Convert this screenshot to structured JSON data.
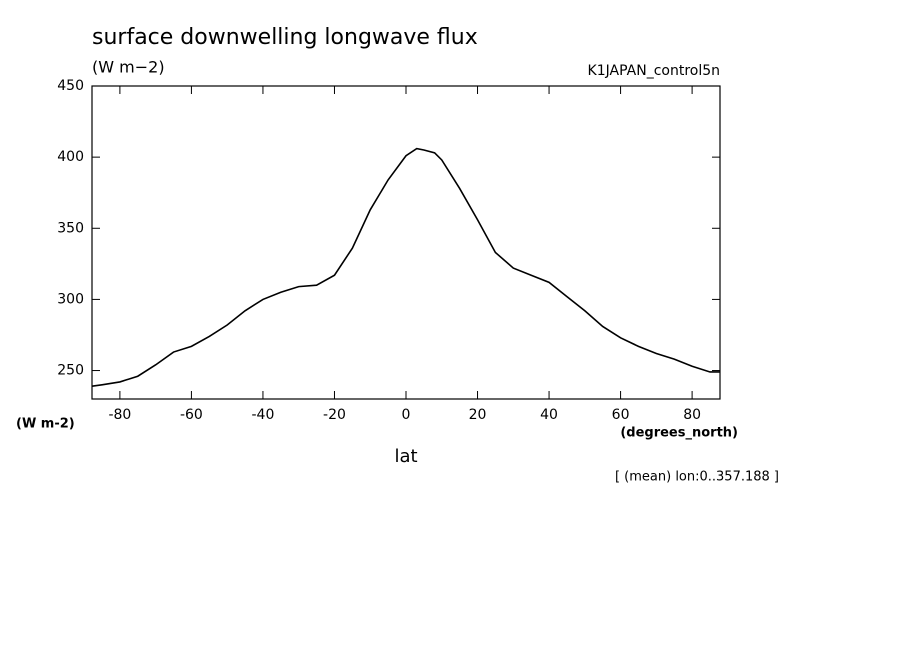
{
  "chart_data": {
    "type": "line",
    "title": "surface downwelling longwave flux",
    "units_label": "(W m−2)",
    "run_label": "K1JAPAN_control5n",
    "y_axis_label": "(W m-2)",
    "x_units_label": "(degrees_north)",
    "x_axis_label": "lat",
    "note": "[ (mean) lon:0..357.188 ]",
    "x": [
      -87.8,
      -85,
      -80,
      -75,
      -70,
      -65,
      -60,
      -55,
      -50,
      -45,
      -40,
      -35,
      -30,
      -25,
      -20,
      -15,
      -10,
      -5,
      0,
      3,
      5,
      8,
      10,
      15,
      20,
      25,
      30,
      35,
      40,
      45,
      50,
      55,
      60,
      65,
      70,
      75,
      80,
      85,
      87.8
    ],
    "series": [
      {
        "color": "#000000",
        "values": [
          239,
          240,
          242,
          246,
          254,
          263,
          267,
          274,
          282,
          292,
          300,
          305,
          309,
          310,
          317,
          336,
          363,
          384,
          401,
          406,
          405,
          403,
          398,
          378,
          356,
          333,
          322,
          317,
          312,
          302,
          292,
          281,
          273,
          267,
          262,
          258,
          253,
          249,
          249
        ]
      }
    ],
    "xlim": [
      -87.8,
      87.8
    ],
    "ylim": [
      230,
      450
    ],
    "xticks": [
      -80,
      -60,
      -40,
      -20,
      0,
      20,
      40,
      60,
      80
    ],
    "yticks": [
      250,
      300,
      350,
      400,
      450
    ]
  }
}
